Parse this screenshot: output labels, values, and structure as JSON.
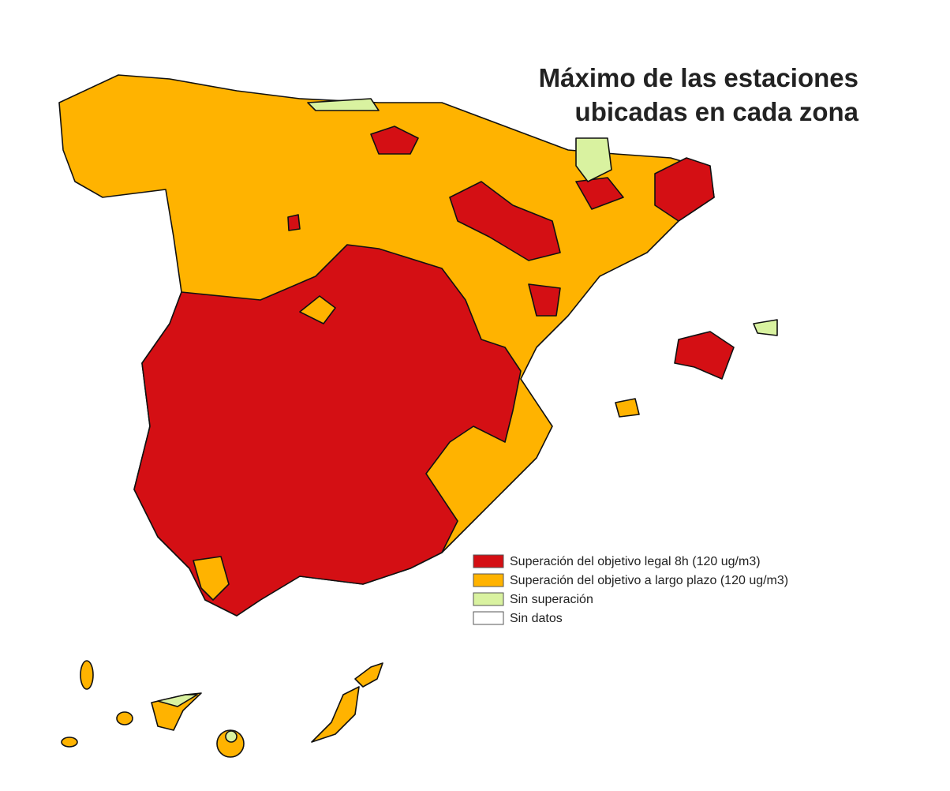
{
  "title": [
    "Máximo de las estaciones",
    "ubicadas en cada zona"
  ],
  "legend": [
    {
      "label": "Superación del objetivo legal 8h (120 ug/m3)",
      "color": "#d40f14"
    },
    {
      "label": "Superación del objetivo a largo plazo (120 ug/m3)",
      "color": "#ffb300"
    },
    {
      "label": "Sin superación",
      "color": "#d9f2a0"
    },
    {
      "label": "Sin datos",
      "color": "#ffffff"
    }
  ]
}
